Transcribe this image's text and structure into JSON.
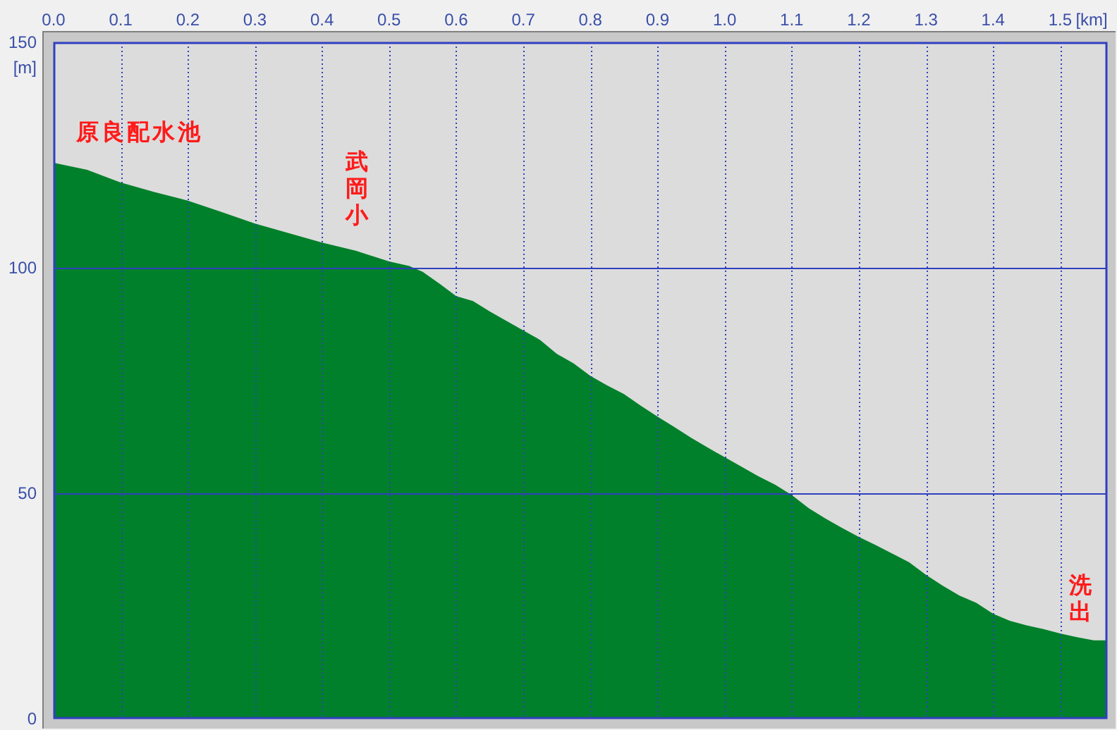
{
  "chart_data": {
    "type": "area",
    "xlabel": "[km]",
    "ylabel": "[m]",
    "color": "#00802a",
    "x": [
      0,
      0.05,
      0.1,
      0.15,
      0.2,
      0.25,
      0.3,
      0.35,
      0.4,
      0.45,
      0.5,
      0.53,
      0.55,
      0.575,
      0.6,
      0.625,
      0.65,
      0.675,
      0.7,
      0.725,
      0.75,
      0.775,
      0.8,
      0.825,
      0.85,
      0.875,
      0.9,
      0.925,
      0.95,
      0.975,
      1.0,
      1.025,
      1.05,
      1.075,
      1.1,
      1.125,
      1.15,
      1.175,
      1.2,
      1.225,
      1.25,
      1.275,
      1.3,
      1.325,
      1.35,
      1.375,
      1.4,
      1.425,
      1.45,
      1.475,
      1.5,
      1.525,
      1.55,
      1.57
    ],
    "values": [
      123.3,
      121.7,
      118.9,
      116.8,
      114.9,
      112.4,
      109.8,
      107.7,
      105.6,
      103.8,
      101.4,
      100.4,
      99.1,
      96.5,
      93.7,
      92.6,
      90.3,
      88.2,
      86.1,
      84.0,
      80.9,
      78.8,
      76.0,
      73.9,
      72.0,
      69.4,
      67.0,
      64.7,
      62.3,
      60.1,
      58.0,
      55.9,
      53.8,
      51.9,
      49.6,
      46.7,
      44.4,
      42.3,
      40.3,
      38.5,
      36.6,
      34.7,
      31.9,
      29.5,
      27.3,
      25.7,
      23.3,
      21.7,
      20.7,
      19.9,
      18.9,
      18.1,
      17.4,
      17.4
    ],
    "xlim": [
      0,
      1.57
    ],
    "ylim": [
      0,
      150
    ],
    "xticks": [
      {
        "value": 0,
        "label": "0.0"
      },
      0.1,
      0.2,
      0.3,
      0.4,
      0.5,
      0.6,
      0.7,
      0.8,
      0.9,
      {
        "value": 1,
        "label": "1.0"
      },
      1.1,
      1.2,
      1.3,
      1.4,
      1.5
    ],
    "yticks": [
      0,
      50,
      100,
      150
    ],
    "grid": true,
    "annotations": [
      "原良配水池",
      "武岡小",
      "洗出"
    ]
  }
}
